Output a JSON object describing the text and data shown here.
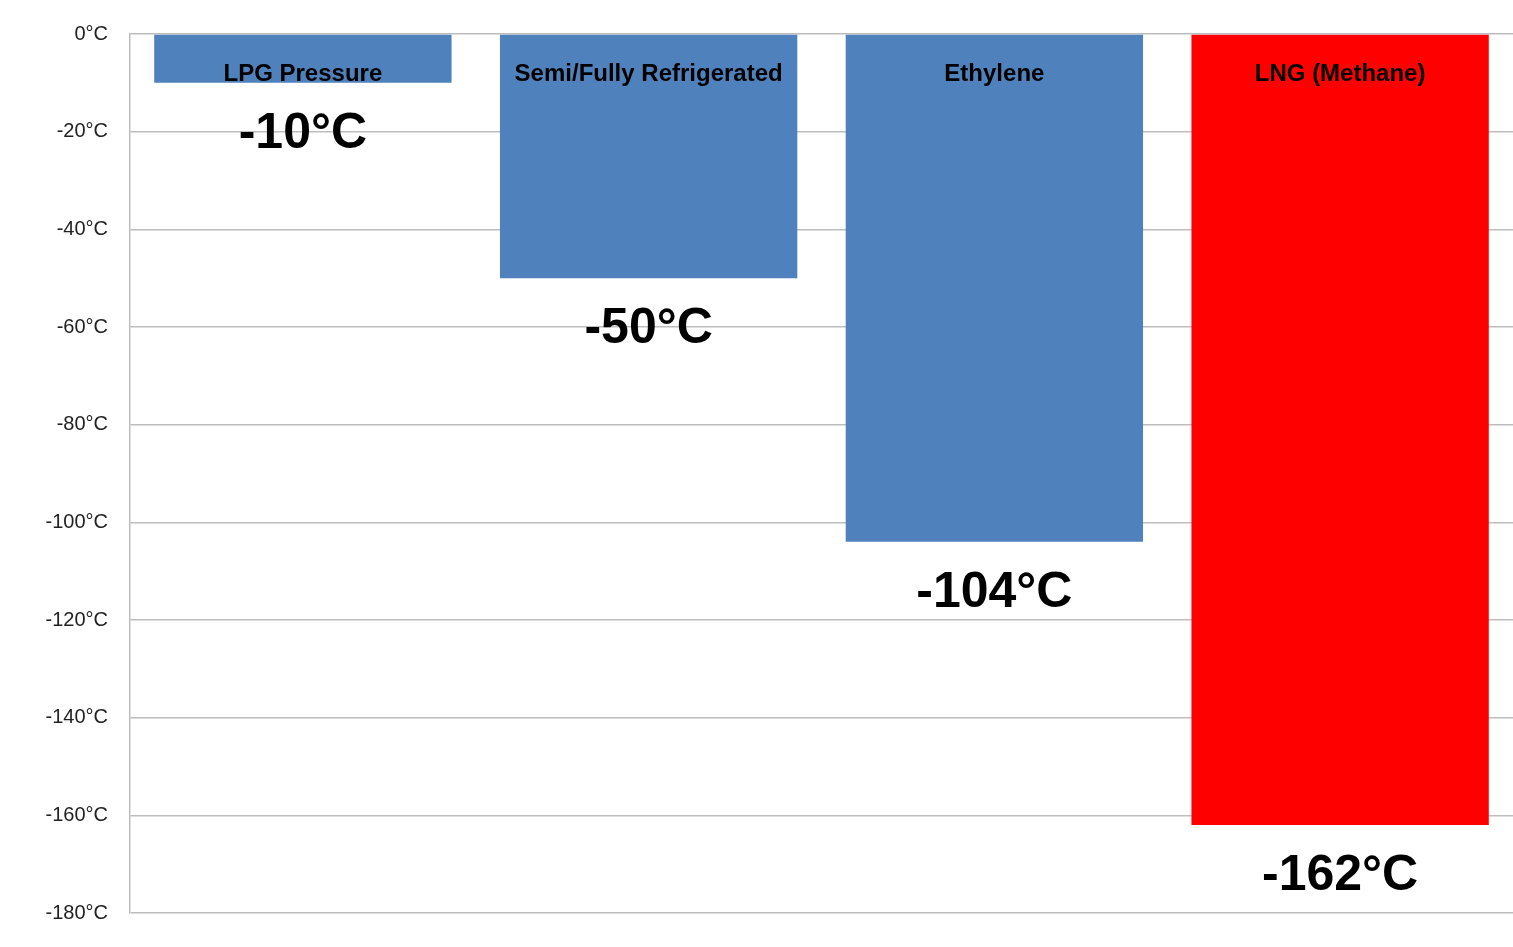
{
  "chart_data": {
    "type": "bar",
    "categories": [
      "LPG Pressure",
      "Semi/Fully Refrigerated",
      "Ethylene",
      "LNG (Methane)"
    ],
    "values": [
      -10,
      -50,
      -104,
      -162
    ],
    "colors": [
      "#4f81bd",
      "#4f81bd",
      "#4f81bd",
      "#ff0000"
    ],
    "value_labels": [
      "-10°C",
      "-50°C",
      "-104°C",
      "-162°C"
    ],
    "ylim": [
      -180,
      0
    ],
    "yticks": [
      {
        "value": 0,
        "label": "0°C"
      },
      {
        "value": -20,
        "label": "-20°C"
      },
      {
        "value": -40,
        "label": "-40°C"
      },
      {
        "value": -60,
        "label": "-60°C"
      },
      {
        "value": -80,
        "label": "-80°C"
      },
      {
        "value": -100,
        "label": "-100°C"
      },
      {
        "value": -120,
        "label": "-120°C"
      },
      {
        "value": -140,
        "label": "-140°C"
      },
      {
        "value": -160,
        "label": "-160°C"
      },
      {
        "value": -180,
        "label": "-180°C"
      }
    ],
    "grid": "y",
    "legend": false
  }
}
